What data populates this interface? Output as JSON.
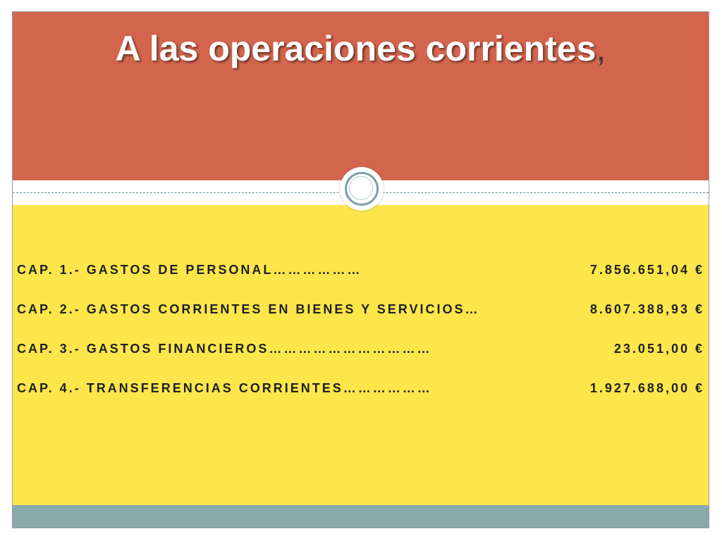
{
  "slide": {
    "title": "A las operaciones corrientes",
    "title_punctuation": ",",
    "colors": {
      "title_band": "#d4654d",
      "content_band": "#fde64a",
      "footer_band": "#8aaaaa",
      "medallion_ring": "#7c9fa6"
    }
  },
  "chapters": [
    {
      "label": "CAP. 1.- GASTOS DE PERSONAL………………",
      "amount": "7.856.651,04 €"
    },
    {
      "label": "CAP. 2.- GASTOS CORRIENTES EN BIENES Y SERVICIOS…",
      "amount": "8.607.388,93 €"
    },
    {
      "label": "CAP. 3.- GASTOS FINANCIEROS……………………………",
      "amount": "23.051,00 €"
    },
    {
      "label": "CAP. 4.- TRANSFERENCIAS CORRIENTES………………",
      "amount": "1.927.688,00 €"
    }
  ]
}
